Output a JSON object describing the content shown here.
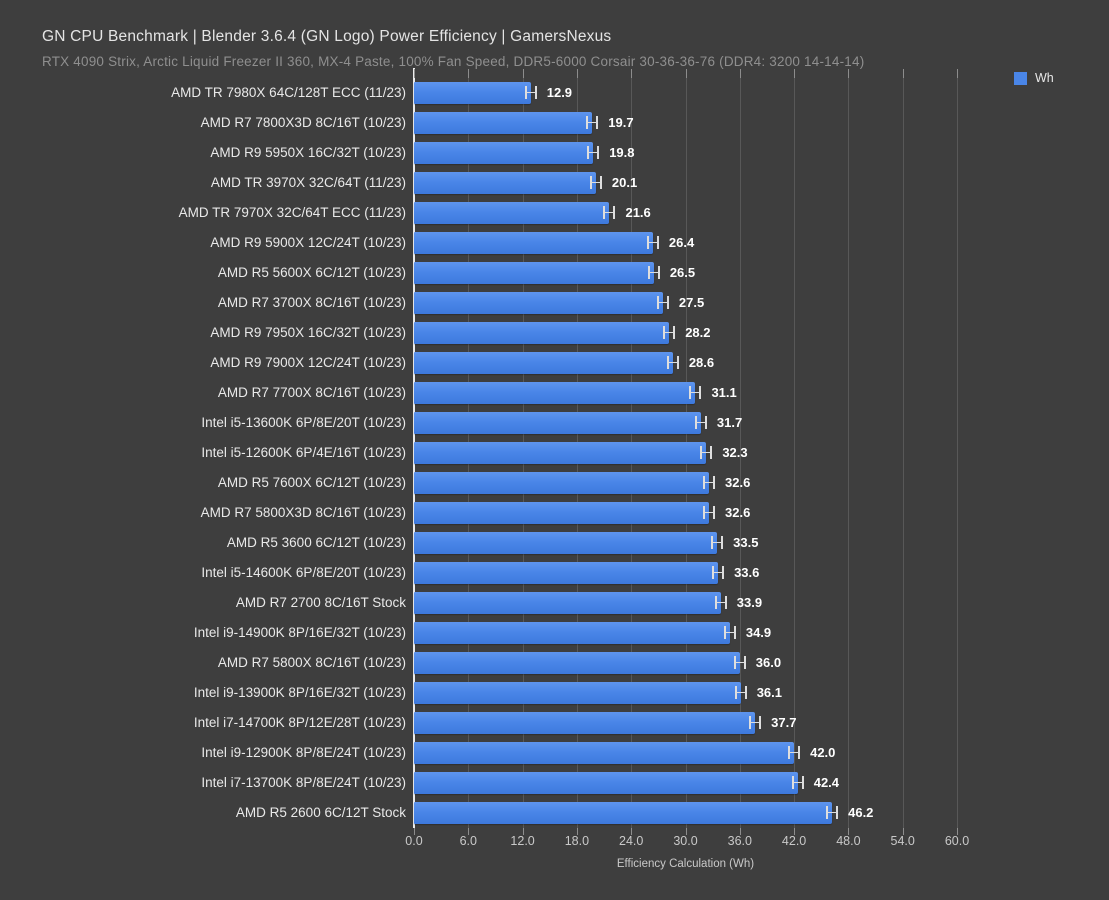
{
  "header": {
    "title": "GN CPU Benchmark | Blender 3.6.4 (GN Logo) Power Efficiency | GamersNexus",
    "subtitle": "RTX 4090 Strix, Arctic Liquid Freezer II 360, MX-4 Paste, 100% Fan Speed, DDR5-6000 Corsair 30-36-36-76 (DDR4: 3200 14-14-14)"
  },
  "legend": {
    "label": "Wh",
    "color": "#4a86e8",
    "position": "top-right"
  },
  "chart_data": {
    "type": "bar",
    "orientation": "horizontal",
    "title": "GN CPU Benchmark | Blender 3.6.4 (GN Logo) Power Efficiency | GamersNexus",
    "subtitle": "RTX 4090 Strix, Arctic Liquid Freezer II 360, MX-4 Paste, 100% Fan Speed, DDR5-6000 Corsair 30-36-36-76 (DDR4: 3200 14-14-14)",
    "series_name": "Wh",
    "xlabel": "Efficiency Calculation (Wh)",
    "xlim": [
      0,
      60
    ],
    "xtick_labels": [
      "0.0",
      "6.0",
      "12.0",
      "18.0",
      "24.0",
      "30.0",
      "36.0",
      "42.0",
      "48.0",
      "54.0",
      "60.0"
    ],
    "grid": true,
    "error_bars": true,
    "bar_color": "#4a86e8",
    "background_color": "#3e3e3e",
    "categories": [
      "AMD TR 7980X 64C/128T ECC (11/23)",
      "AMD R7 7800X3D 8C/16T (10/23)",
      "AMD R9 5950X 16C/32T (10/23)",
      "AMD TR 3970X 32C/64T (11/23)",
      "AMD TR 7970X 32C/64T ECC (11/23)",
      "AMD R9 5900X 12C/24T (10/23)",
      "AMD R5 5600X 6C/12T (10/23)",
      "AMD R7 3700X 8C/16T (10/23)",
      "AMD R9 7950X 16C/32T (10/23)",
      "AMD R9 7900X 12C/24T (10/23)",
      "AMD R7 7700X 8C/16T (10/23)",
      "Intel i5-13600K 6P/8E/20T (10/23)",
      "Intel i5-12600K 6P/4E/16T (10/23)",
      "AMD R5 7600X 6C/12T (10/23)",
      "AMD R7 5800X3D 8C/16T (10/23)",
      "AMD R5 3600 6C/12T (10/23)",
      "Intel i5-14600K 6P/8E/20T (10/23)",
      "AMD R7 2700 8C/16T Stock",
      "Intel i9-14900K 8P/16E/32T (10/23)",
      "AMD R7 5800X 8C/16T (10/23)",
      "Intel i9-13900K 8P/16E/32T (10/23)",
      "Intel i7-14700K 8P/12E/28T (10/23)",
      "Intel i9-12900K 8P/8E/24T (10/23)",
      "Intel i7-13700K 8P/8E/24T (10/23)",
      "AMD R5 2600 6C/12T Stock"
    ],
    "values": [
      12.9,
      19.7,
      19.8,
      20.1,
      21.6,
      26.4,
      26.5,
      27.5,
      28.2,
      28.6,
      31.1,
      31.7,
      32.3,
      32.6,
      32.6,
      33.5,
      33.6,
      33.9,
      34.9,
      36.0,
      36.1,
      37.7,
      42.0,
      42.4,
      46.2
    ]
  }
}
